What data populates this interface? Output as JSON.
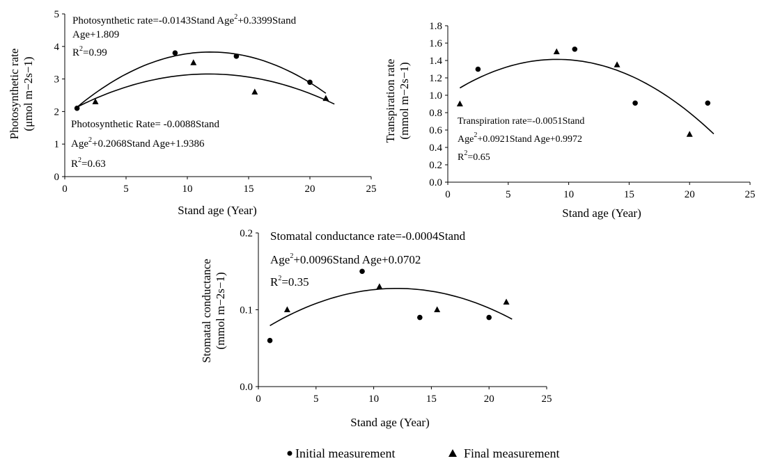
{
  "chart_data": [
    {
      "type": "scatter",
      "xlabel": "Stand age (Year)",
      "ylabel": "Photosynthetic rate",
      "ylabel_unit": "(μmol m−2s−1)",
      "xlim": [
        0,
        25
      ],
      "ylim": [
        0,
        5
      ],
      "xticks": [
        "0",
        "5",
        "10",
        "15",
        "20",
        "25"
      ],
      "yticks": [
        "0",
        "1",
        "2",
        "3",
        "4",
        "5"
      ],
      "grid": false,
      "series": [
        {
          "name": "Initial measurement",
          "marker": "circle",
          "x": [
            1,
            9,
            14,
            20
          ],
          "y": [
            2.1,
            3.8,
            3.7,
            2.9
          ]
        },
        {
          "name": "Final measurement",
          "marker": "triangle",
          "x": [
            2.5,
            10.5,
            15.5,
            21.3
          ],
          "y": [
            2.3,
            3.5,
            2.6,
            2.4
          ]
        }
      ],
      "fits": [
        {
          "a": -0.0143,
          "b": 0.3399,
          "c": 1.809,
          "from": 1,
          "to": 21.3
        },
        {
          "a": -0.0088,
          "b": 0.2068,
          "c": 1.9386,
          "from": 1,
          "to": 22
        }
      ],
      "annotations": {
        "fit1_line1a": "Photosynthetic rate=-0.0143Stand Age",
        "fit1_line1b": "+0.3399Stand",
        "fit1_line2": "Age+1.809",
        "fit1_r2": "=0.99",
        "fit2_line1": "Photosynthetic Rate= -0.0088Stand",
        "fit2_line2": "Age",
        "fit2_line2b": "+0.2068Stand Age+1.9386",
        "fit2_r2": "=0.63"
      }
    },
    {
      "type": "scatter",
      "xlabel": "Stand age (Year)",
      "ylabel": "Transpiration rate",
      "ylabel_unit": "(mmol m−2s−1)",
      "xlim": [
        0,
        25
      ],
      "ylim": [
        0,
        1.8
      ],
      "xticks": [
        "0",
        "5",
        "10",
        "15",
        "20",
        "25"
      ],
      "yticks": [
        "0.0",
        "0.2",
        "0.4",
        "0.6",
        "0.8",
        "1.0",
        "1.2",
        "1.4",
        "1.6",
        "1.8"
      ],
      "grid": false,
      "series": [
        {
          "name": "Initial measurement",
          "marker": "circle",
          "x": [
            2.5,
            10.5,
            15.5,
            21.5
          ],
          "y": [
            1.3,
            1.53,
            0.91,
            0.91
          ]
        },
        {
          "name": "Final measurement",
          "marker": "triangle",
          "x": [
            1,
            9,
            14,
            20
          ],
          "y": [
            0.9,
            1.5,
            1.35,
            0.55
          ]
        }
      ],
      "fits": [
        {
          "a": -0.0051,
          "b": 0.0921,
          "c": 0.9972,
          "from": 1,
          "to": 22
        }
      ],
      "annotations": {
        "fit1_line1": "Transpiration rate=-0.0051Stand",
        "fit1_line2": "Age",
        "fit1_line2b": "+0.0921Stand Age+0.9972",
        "fit1_r2": "=0.65"
      }
    },
    {
      "type": "scatter",
      "xlabel": "Stand age (Year)",
      "ylabel": "Stomatal conductance",
      "ylabel_unit": "(mmol m−2s−1)",
      "xlim": [
        0,
        25
      ],
      "ylim": [
        0,
        0.2
      ],
      "xticks": [
        "0",
        "5",
        "10",
        "15",
        "20",
        "25"
      ],
      "yticks": [
        "0.0",
        "0.1",
        "0.2"
      ],
      "grid": false,
      "series": [
        {
          "name": "Initial measurement",
          "marker": "circle",
          "x": [
            1,
            9,
            14,
            20
          ],
          "y": [
            0.06,
            0.15,
            0.09,
            0.09
          ]
        },
        {
          "name": "Final measurement",
          "marker": "triangle",
          "x": [
            2.5,
            10.5,
            15.5,
            21.5
          ],
          "y": [
            0.1,
            0.13,
            0.1,
            0.11
          ]
        }
      ],
      "fits": [
        {
          "a": -0.0004,
          "b": 0.0096,
          "c": 0.0702,
          "from": 1,
          "to": 22
        }
      ],
      "annotations": {
        "fit1_line1": "Stomatal conductance rate=-0.0004Stand",
        "fit1_line2": "Age",
        "fit1_line2b": "+0.0096Stand Age+0.0702",
        "fit1_r2": "=0.35"
      }
    }
  ],
  "legend": {
    "items": [
      "Initial measurement",
      "Final measurement"
    ],
    "markers": [
      "circle",
      "triangle"
    ],
    "placement": "bottom-center"
  },
  "labels": {
    "r": "R",
    "sup2": "2",
    "minus2": "−2",
    "minus1": "−1"
  }
}
